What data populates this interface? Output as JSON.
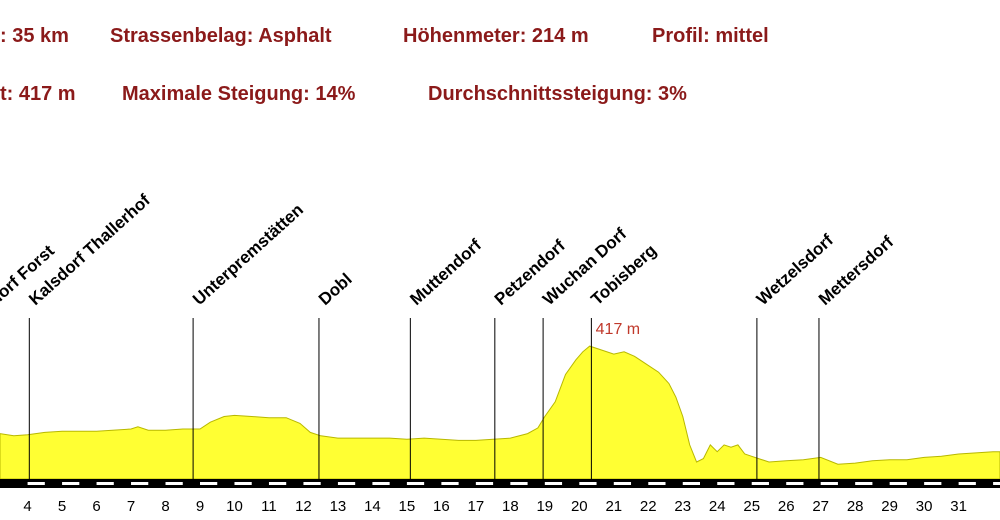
{
  "stats": {
    "distance": ": 35 km",
    "surface": "Strassenbelag: Asphalt",
    "elevation_gain": "Höhenmeter: 214 m",
    "profile": "Profil: mittel",
    "highest_point": "t: 417 m",
    "max_gradient": "Maximale Steigung: 14%",
    "avg_gradient": "Durchschnittssteigung: 3%"
  },
  "colors": {
    "stats_text": "#8b1a1a",
    "profile_fill": "#ffff33",
    "profile_stroke": "#b8b800",
    "max_label": "#c0392b"
  },
  "chart_data": {
    "type": "area",
    "title": "",
    "xlabel": "",
    "ylabel": "",
    "x_unit": "km",
    "xlim": [
      3.2,
      32.2
    ],
    "x_ticks": [
      4,
      5,
      6,
      7,
      8,
      9,
      10,
      11,
      12,
      13,
      14,
      15,
      16,
      17,
      18,
      19,
      20,
      21,
      22,
      23,
      24,
      25,
      26,
      27,
      28,
      29,
      30,
      31
    ],
    "y_unit": "m",
    "ylim": [
      300,
      440
    ],
    "grid": false,
    "max_label": "417 m",
    "series": [
      {
        "x": [
          3.2,
          3.6,
          4.0,
          4.5,
          5.0,
          6.0,
          7.0,
          7.2,
          7.5,
          8.0,
          8.5,
          9.0,
          9.3,
          9.7,
          10.0,
          10.5,
          11.0,
          11.5,
          11.9,
          12.2,
          12.5,
          13.0,
          13.5,
          14.0,
          14.5,
          15.0,
          15.5,
          16.0,
          16.5,
          17.0,
          17.5,
          18.0,
          18.5,
          18.8,
          19.0,
          19.3,
          19.6,
          19.9,
          20.1,
          20.3,
          20.6,
          21.0,
          21.3,
          21.6,
          22.0,
          22.3,
          22.6,
          22.8,
          23.0,
          23.2,
          23.4,
          23.6,
          23.8,
          24.0,
          24.2,
          24.4,
          24.6,
          24.8,
          25.0,
          25.2,
          25.5,
          26.0,
          26.5,
          27.0,
          27.5,
          28.0,
          28.5,
          29.0,
          29.5,
          30.0,
          30.5,
          31.0,
          31.5,
          32.0,
          32.2
        ],
        "y": [
          340,
          338,
          339,
          341,
          342,
          342,
          344,
          346,
          343,
          343,
          344,
          344,
          350,
          355,
          356,
          355,
          354,
          354,
          349,
          341,
          338,
          336,
          336,
          336,
          336,
          335,
          336,
          335,
          334,
          334,
          335,
          336,
          340,
          345,
          355,
          368,
          392,
          405,
          412,
          417,
          414,
          410,
          412,
          408,
          400,
          394,
          384,
          372,
          355,
          330,
          315,
          318,
          330,
          324,
          330,
          328,
          330,
          322,
          320,
          318,
          315,
          316,
          317,
          319,
          313,
          314,
          316,
          317,
          317,
          319,
          320,
          322,
          323,
          324,
          324
        ]
      }
    ],
    "places": [
      {
        "name": "dorf Forst",
        "km": 2.9,
        "line": false
      },
      {
        "name": "Kalsdorf Thallerhof",
        "km": 4.05,
        "line": true
      },
      {
        "name": "Unterpremstätten",
        "km": 8.8,
        "line": true
      },
      {
        "name": "Dobl",
        "km": 12.45,
        "line": true
      },
      {
        "name": "Muttendorf",
        "km": 15.1,
        "line": true
      },
      {
        "name": "Petzendorf",
        "km": 17.55,
        "line": true
      },
      {
        "name": "Wuchan Dorf",
        "km": 18.95,
        "line": true
      },
      {
        "name": "Tobisberg",
        "km": 20.35,
        "line": true
      },
      {
        "name": "Wetzelsdorf",
        "km": 25.15,
        "line": true
      },
      {
        "name": "Mettersdorf",
        "km": 26.95,
        "line": true
      }
    ]
  }
}
